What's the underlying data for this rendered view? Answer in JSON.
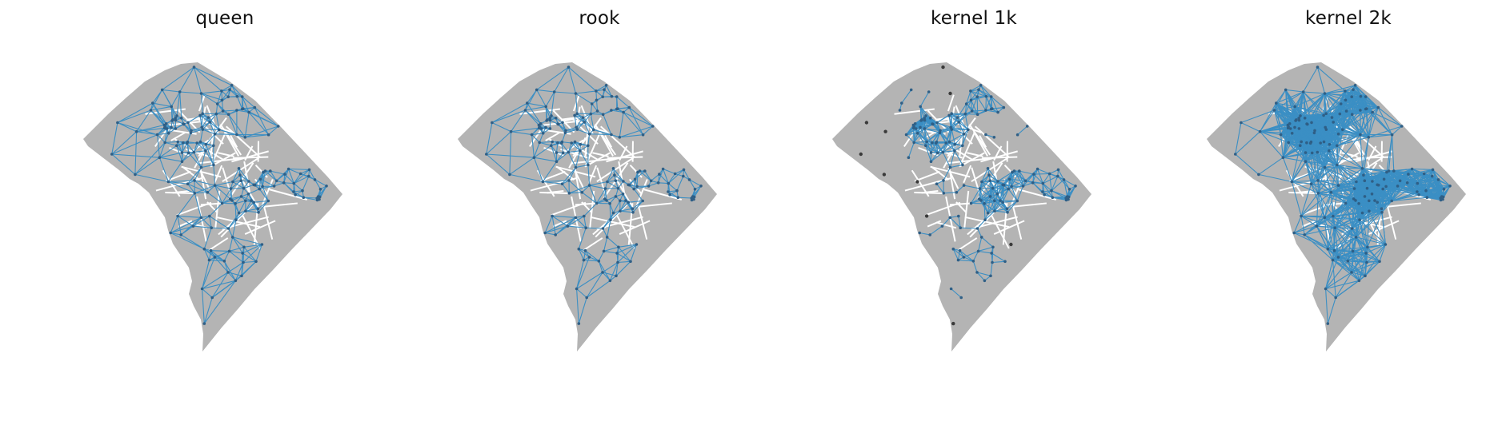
{
  "figure": {
    "panels": [
      {
        "id": "queen",
        "title": "queen"
      },
      {
        "id": "rook",
        "title": "rook"
      },
      {
        "id": "kernel-1k",
        "title": "kernel 1k"
      },
      {
        "id": "kernel-2k",
        "title": "kernel 2k"
      }
    ]
  },
  "colors": {
    "land": "#b4b4b4",
    "boundary": "#ffffff",
    "edge": "#3b8fc4",
    "node": "#2f5f86",
    "isolated_node": "#3a3a3a",
    "background": "#ffffff"
  }
}
